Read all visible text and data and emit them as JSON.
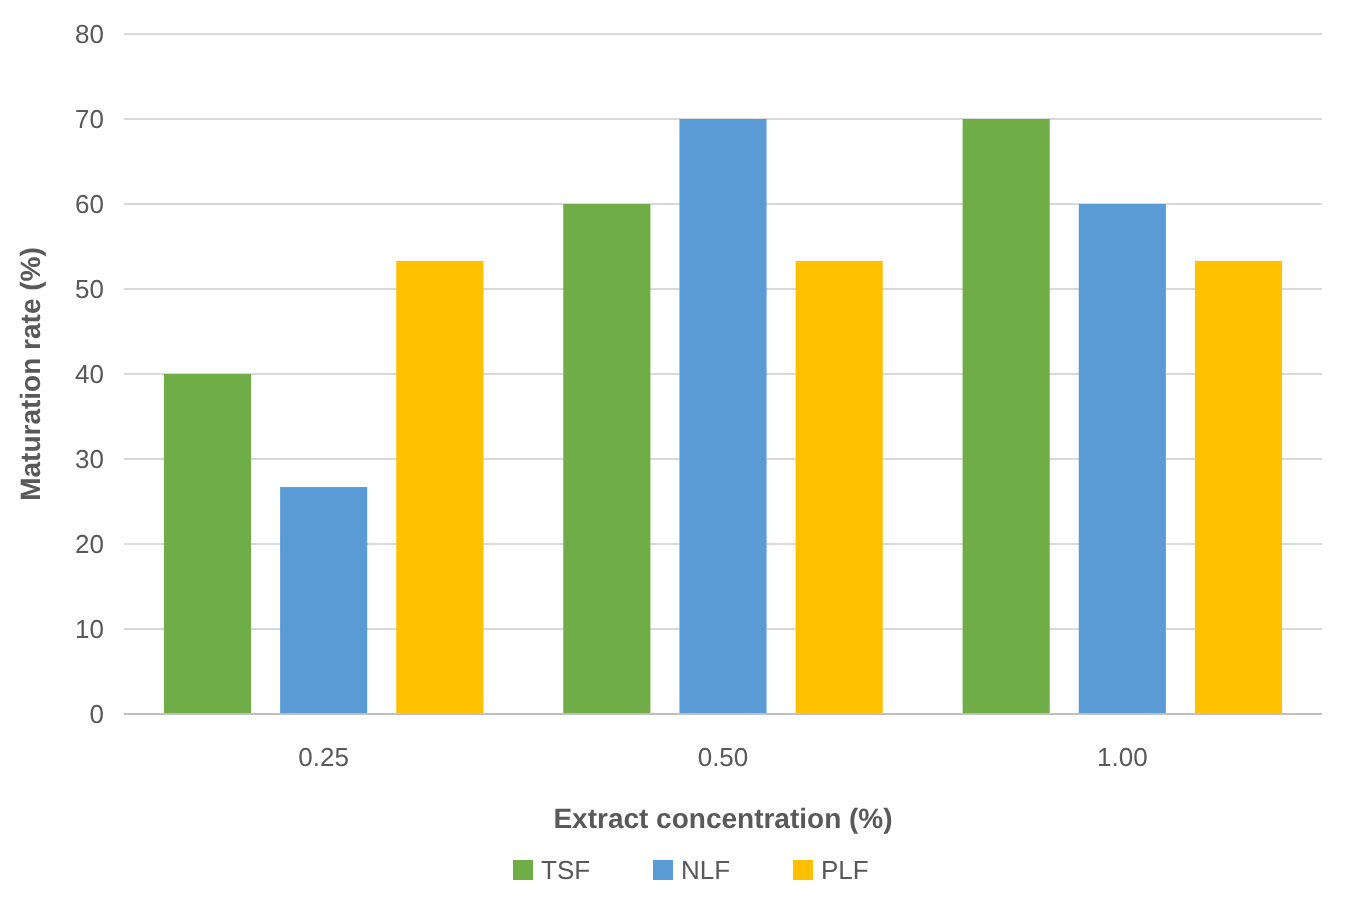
{
  "chart_data": {
    "type": "bar",
    "xlabel": "Extract concentration (%)",
    "ylabel": "Maturation rate (%)",
    "categories": [
      "0.25",
      "0.50",
      "1.00"
    ],
    "series": [
      {
        "name": "TSF",
        "color": "#70ad47",
        "values": [
          40,
          60,
          70
        ]
      },
      {
        "name": "NLF",
        "color": "#5b9bd5",
        "values": [
          26.7,
          70,
          60
        ]
      },
      {
        "name": "PLF",
        "color": "#ffc000",
        "values": [
          53.3,
          53.3,
          53.3
        ]
      }
    ],
    "ylim": [
      0,
      80
    ],
    "yticks": [
      0,
      10,
      20,
      30,
      40,
      50,
      60,
      70,
      80
    ],
    "grid": "y",
    "legend": "bottom"
  }
}
